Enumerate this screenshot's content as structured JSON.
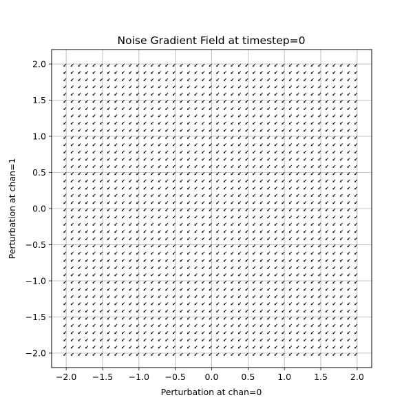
{
  "chart_data": {
    "type": "quiver",
    "title": "Noise Gradient Field at timestep=0",
    "xlabel": "Perturbation at chan=0",
    "ylabel": "Perturbation at chan=1",
    "xlim": [
      -2.2,
      2.2
    ],
    "ylim": [
      -2.2,
      2.2
    ],
    "xticks": [
      -2.0,
      -1.5,
      -1.0,
      -0.5,
      0.0,
      0.5,
      1.0,
      1.5,
      2.0
    ],
    "yticks": [
      -2.0,
      -1.5,
      -1.0,
      -0.5,
      0.0,
      0.5,
      1.0,
      1.5,
      2.0
    ],
    "xtick_labels": [
      "−2.0",
      "−1.5",
      "−1.0",
      "−0.5",
      "0.0",
      "0.5",
      "1.0",
      "1.5",
      "2.0"
    ],
    "ytick_labels": [
      "−2.0",
      "−1.5",
      "−1.0",
      "−0.5",
      "0.0",
      "0.5",
      "1.0",
      "1.5",
      "2.0"
    ],
    "grid": true,
    "field": {
      "x_start": -2.0,
      "x_end": 2.0,
      "y_start": -2.0,
      "y_end": 2.0,
      "points_per_axis": 41,
      "u": -0.7,
      "v": -0.7
    },
    "colors": {
      "arrow": "#000000",
      "grid": "#b0b0b0",
      "axes": "#000000",
      "background": "#ffffff"
    }
  }
}
